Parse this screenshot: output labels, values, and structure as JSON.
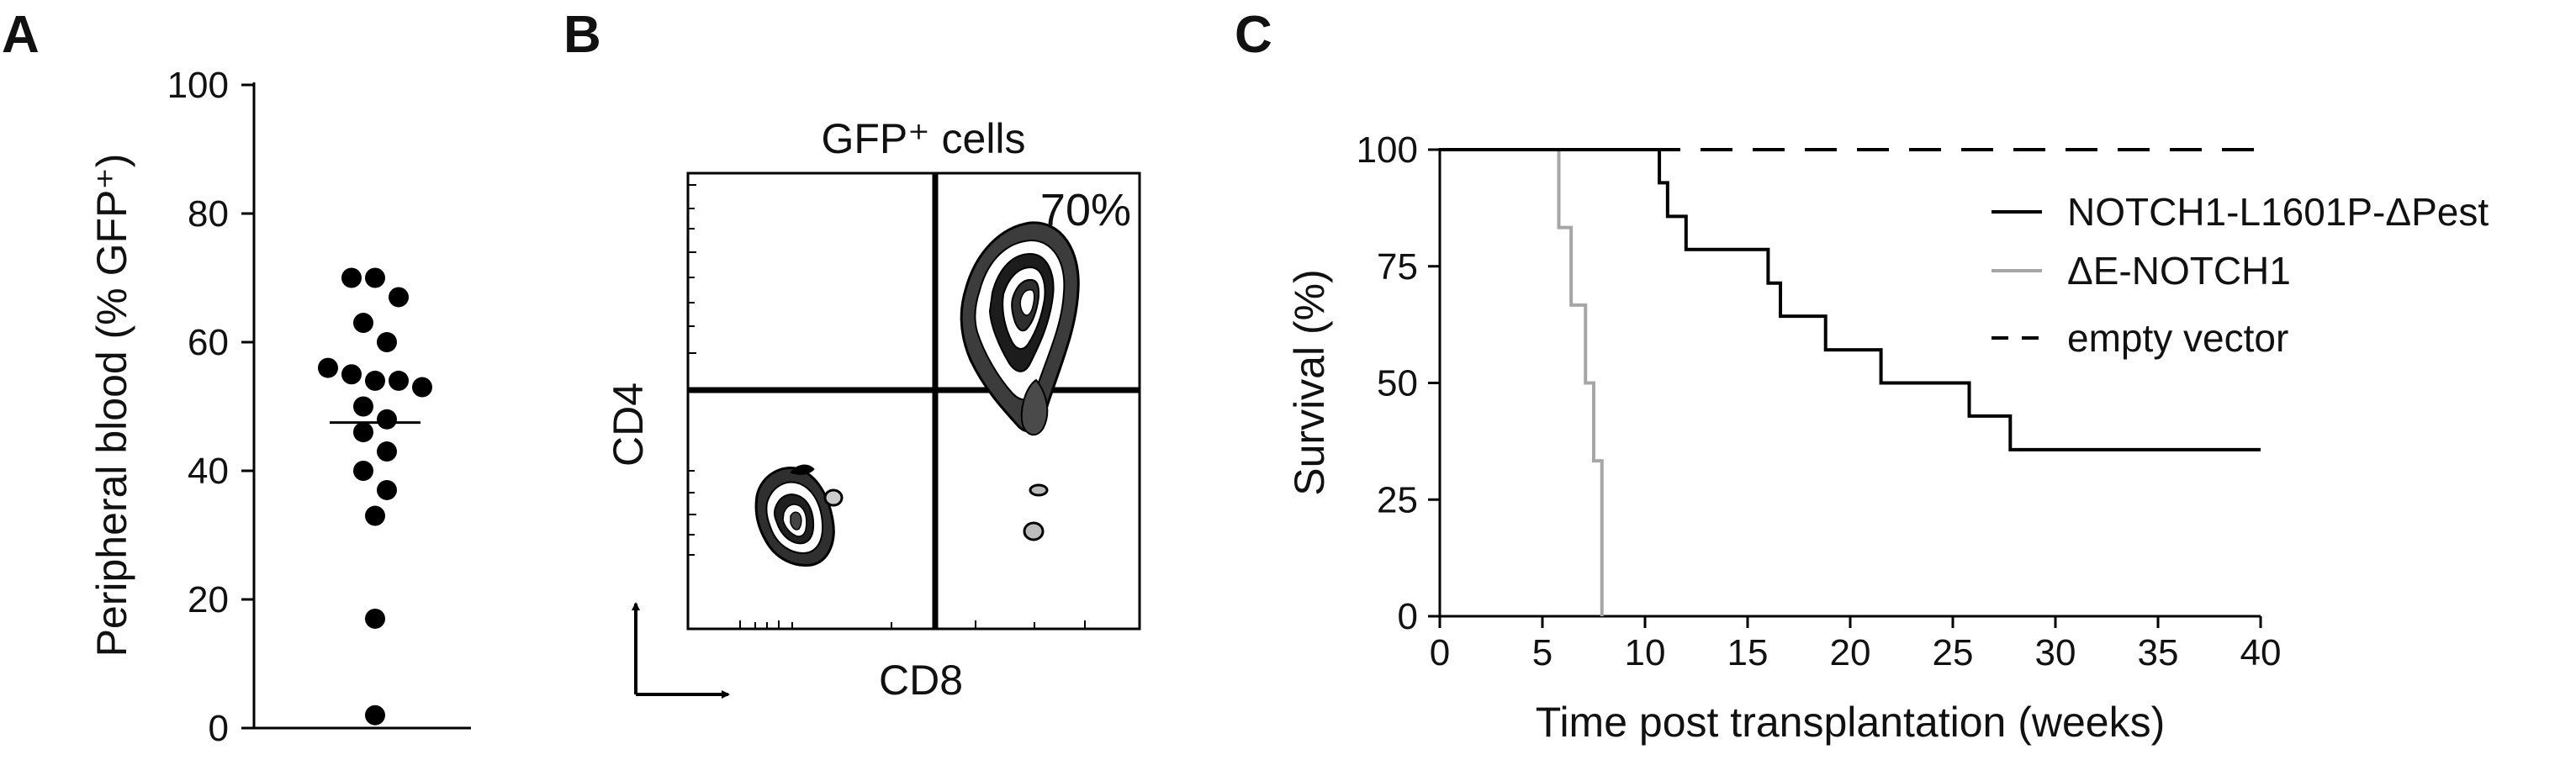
{
  "panels": {
    "A": {
      "letter": "A",
      "chart_data": {
        "type": "scatter",
        "ylabel": "Peripheral blood (% GFP⁺)",
        "ylim": [
          0,
          100
        ],
        "yticks": [
          "0",
          "20",
          "40",
          "60",
          "80",
          "100"
        ],
        "values": [
          70,
          70,
          67,
          63,
          60,
          56,
          55,
          54,
          54,
          53,
          50,
          48,
          46,
          43,
          40,
          37,
          33,
          17,
          2
        ],
        "mean": 47.5
      }
    },
    "B": {
      "letter": "B",
      "title": "GFP⁺ cells",
      "xlabel": "CD8",
      "ylabel": "CD4",
      "quadrant_percent": "70%",
      "colors": {
        "quadrant_percent": "#d6242c"
      }
    },
    "C": {
      "letter": "C",
      "chart_data": {
        "type": "line",
        "xlabel": "Time post transplantation (weeks)",
        "ylabel": "Survival (%)",
        "xlim": [
          0,
          40
        ],
        "ylim": [
          0,
          100
        ],
        "xticks": [
          "0",
          "5",
          "10",
          "15",
          "20",
          "25",
          "30",
          "35",
          "40"
        ],
        "yticks": [
          "0",
          "25",
          "50",
          "75",
          "100"
        ],
        "legend_position": "right",
        "series": [
          {
            "name": "NOTCH1-L1601P-ΔPest",
            "style": "solid",
            "color": "#000000",
            "steps": [
              [
                0,
                100
              ],
              [
                10.7,
                92.9
              ],
              [
                11.1,
                85.7
              ],
              [
                12.0,
                78.6
              ],
              [
                16.0,
                71.4
              ],
              [
                16.6,
                64.3
              ],
              [
                18.8,
                57.1
              ],
              [
                21.5,
                50.0
              ],
              [
                25.8,
                42.9
              ],
              [
                27.8,
                35.7
              ]
            ],
            "end": 40
          },
          {
            "name": "ΔE-NOTCH1",
            "style": "solid",
            "color": "#a6a6a6",
            "steps": [
              [
                0,
                100
              ],
              [
                5.8,
                83.3
              ],
              [
                6.4,
                66.7
              ],
              [
                7.1,
                50.0
              ],
              [
                7.5,
                33.3
              ],
              [
                7.9,
                0
              ]
            ],
            "end": 7.9
          },
          {
            "name": "empty vector",
            "style": "dashed",
            "color": "#000000",
            "steps": [
              [
                0,
                100
              ]
            ],
            "end": 40
          }
        ]
      }
    }
  }
}
